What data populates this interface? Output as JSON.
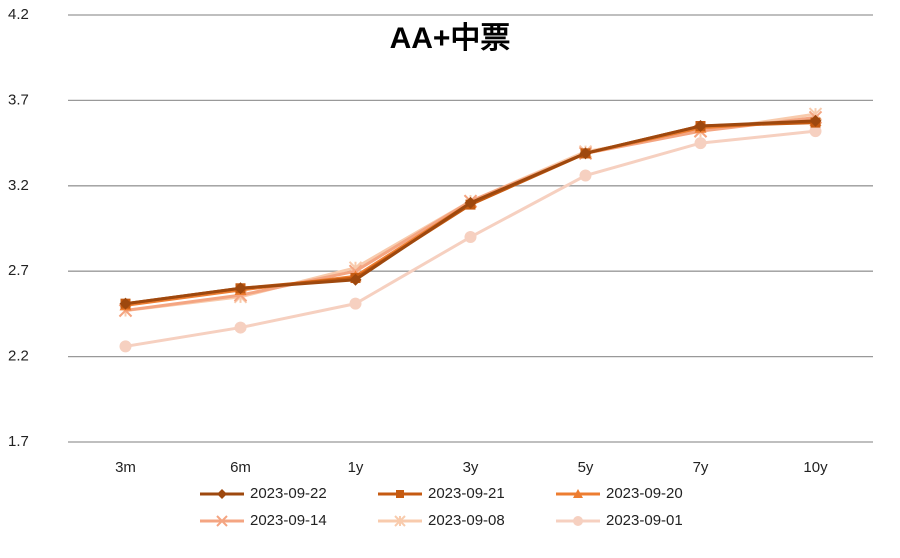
{
  "chart_data": {
    "type": "line",
    "title": "AA+中票",
    "categories": [
      "3m",
      "6m",
      "1y",
      "3y",
      "5y",
      "7y",
      "10y"
    ],
    "series": [
      {
        "name": "2023-09-22",
        "color": "#9e480e",
        "marker": "diamond",
        "values": [
          2.51,
          2.6,
          2.65,
          3.1,
          3.39,
          3.55,
          3.58
        ]
      },
      {
        "name": "2023-09-21",
        "color": "#c55a11",
        "marker": "square",
        "values": [
          2.51,
          2.6,
          2.66,
          3.09,
          3.39,
          3.55,
          3.57
        ]
      },
      {
        "name": "2023-09-20",
        "color": "#ed7d31",
        "marker": "triangle",
        "values": [
          2.5,
          2.59,
          2.67,
          3.1,
          3.39,
          3.54,
          3.58
        ]
      },
      {
        "name": "2023-09-14",
        "color": "#f4a582",
        "marker": "x",
        "values": [
          2.47,
          2.56,
          2.7,
          3.11,
          3.39,
          3.52,
          3.6
        ]
      },
      {
        "name": "2023-09-08",
        "color": "#f8cbad",
        "marker": "star",
        "values": [
          2.47,
          2.55,
          2.72,
          3.11,
          3.4,
          3.52,
          3.62
        ]
      },
      {
        "name": "2023-09-01",
        "color": "#f6d0c0",
        "marker": "circle",
        "values": [
          2.26,
          2.37,
          2.51,
          2.9,
          3.26,
          3.45,
          3.52
        ]
      }
    ],
    "ylim": [
      1.7,
      4.2
    ],
    "yticks": [
      1.7,
      2.2,
      2.7,
      3.2,
      3.7,
      4.2
    ],
    "grid": true,
    "legend": "bottom"
  }
}
